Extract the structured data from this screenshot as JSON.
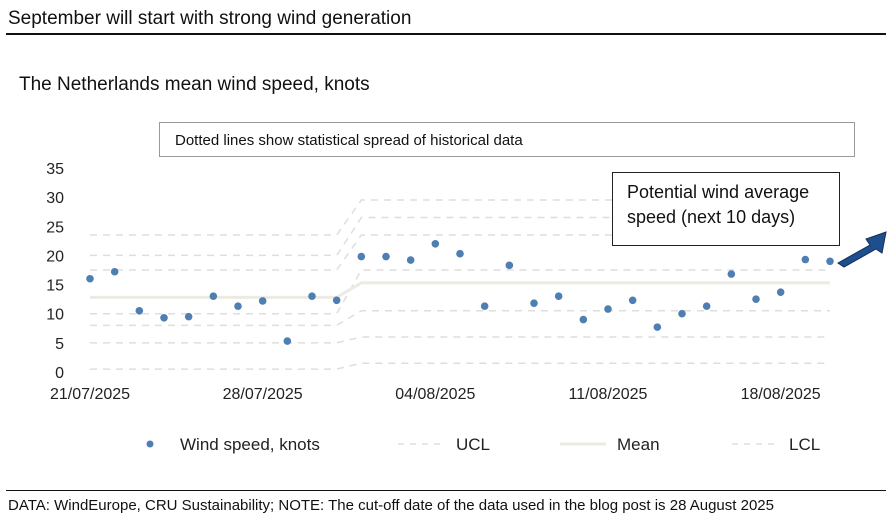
{
  "header": {
    "title": "September will start with strong wind generation"
  },
  "footer": {
    "text": "DATA: WindEurope, CRU Sustainability; NOTE: The cut-off date of the data used in the blog post is 28 August 2025"
  },
  "annotations": {
    "note": "Dotted lines show statistical spread of historical data",
    "forecast_line1": "Potential wind average",
    "forecast_line2": "speed (next 10 days)"
  },
  "colors": {
    "points": "#4f7fb2",
    "mean": "#ecebe3",
    "ucl_lcl": "#dedede",
    "arrow": "#1f4e8c"
  },
  "chart_data": {
    "type": "scatter",
    "title": "The Netherlands mean wind speed, knots",
    "xlabel": "",
    "ylabel": "",
    "ylim": [
      0,
      35
    ],
    "yticks": [
      "0",
      "5",
      "10",
      "15",
      "20",
      "25",
      "30",
      "35"
    ],
    "xticks": [
      "21/07/2025",
      "28/07/2025",
      "04/08/2025",
      "11/08/2025",
      "18/08/2025"
    ],
    "grid": false,
    "legend_position": "bottom",
    "x": [
      "21/07/2025",
      "22/07/2025",
      "23/07/2025",
      "24/07/2025",
      "25/07/2025",
      "26/07/2025",
      "27/07/2025",
      "28/07/2025",
      "29/07/2025",
      "30/07/2025",
      "31/07/2025",
      "01/08/2025",
      "02/08/2025",
      "03/08/2025",
      "04/08/2025",
      "05/08/2025",
      "06/08/2025",
      "07/08/2025",
      "08/08/2025",
      "09/08/2025",
      "10/08/2025",
      "11/08/2025",
      "12/08/2025",
      "13/08/2025",
      "14/08/2025",
      "15/08/2025",
      "16/08/2025",
      "17/08/2025",
      "18/08/2025",
      "19/08/2025",
      "20/08/2025"
    ],
    "series": [
      {
        "name": "Wind speed, knots",
        "style": "points",
        "values": [
          16,
          17.2,
          10.5,
          9.3,
          9.5,
          13,
          11.3,
          12.2,
          5.3,
          13,
          12.3,
          19.8,
          19.8,
          19.2,
          22,
          20.3,
          11.3,
          18.3,
          11.8,
          13,
          9,
          10.8,
          12.3,
          7.7,
          10,
          11.3,
          16.8,
          12.5,
          13.7,
          19.3,
          19
        ]
      },
      {
        "name": "UCL",
        "style": "dashed",
        "values": [
          null,
          null,
          null,
          null,
          null,
          null,
          null,
          null,
          null,
          null,
          null,
          29.5,
          29.5,
          29.5,
          29.5,
          29.5,
          29.5,
          29.5,
          29.5,
          29.5,
          29.5,
          29.5,
          29.5,
          29.5,
          29.5,
          29.5,
          29.5,
          29.5,
          29.5,
          29.5,
          29.5
        ]
      },
      {
        "name": "Mean",
        "style": "solid",
        "values": [
          12.8,
          12.8,
          12.8,
          12.8,
          12.8,
          12.8,
          12.8,
          12.8,
          12.8,
          12.8,
          12.8,
          15.3,
          15.3,
          15.3,
          15.3,
          15.3,
          15.3,
          15.3,
          15.3,
          15.3,
          15.3,
          15.3,
          15.3,
          15.3,
          15.3,
          15.3,
          15.3,
          15.3,
          15.3,
          15.3,
          15.3
        ]
      },
      {
        "name": "LCL",
        "style": "dashed",
        "values": [
          null,
          null,
          null,
          null,
          null,
          null,
          null,
          null,
          null,
          null,
          null,
          null,
          null,
          null,
          null,
          null,
          null,
          null,
          null,
          null,
          null,
          null,
          null,
          null,
          null,
          null,
          null,
          null,
          null,
          null,
          null
        ]
      }
    ],
    "spread_bands": {
      "before": [
        23.5,
        20,
        17.5,
        10,
        8,
        5,
        0.5
      ],
      "after": [
        29.5,
        26.5,
        23.5,
        17.5,
        10.5,
        6,
        1.5
      ]
    }
  }
}
